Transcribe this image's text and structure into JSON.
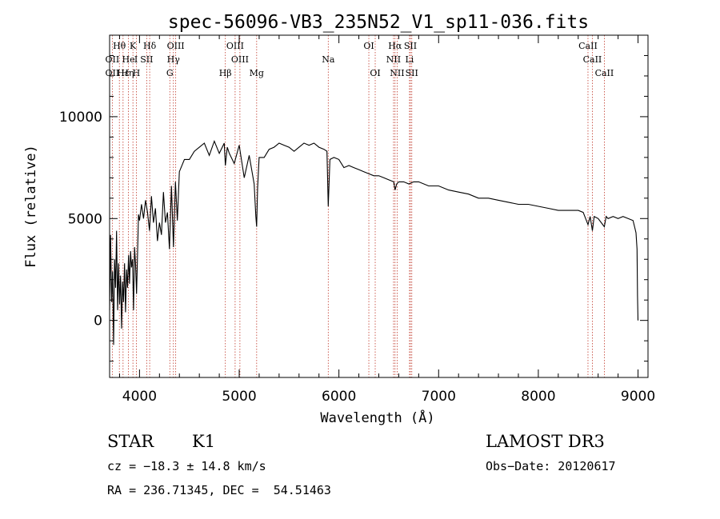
{
  "chart_data": {
    "type": "line",
    "title": "spec-56096-VB3_235N52_V1_sp11-036.fits",
    "xlabel": "Wavelength (Å)",
    "ylabel": "Flux (relative)",
    "xlim": [
      3700,
      9100
    ],
    "ylim": [
      -2800,
      14000
    ],
    "xticks": [
      {
        "value": 4000,
        "label": "4000"
      },
      {
        "value": 5000,
        "label": "5000"
      },
      {
        "value": 6000,
        "label": "6000"
      },
      {
        "value": 7000,
        "label": "7000"
      },
      {
        "value": 8000,
        "label": "8000"
      },
      {
        "value": 9000,
        "label": "9000"
      }
    ],
    "yticks": [
      {
        "value": 0,
        "label": "0"
      },
      {
        "value": 5000,
        "label": "5000"
      },
      {
        "value": 10000,
        "label": "10000"
      }
    ],
    "series": [
      {
        "name": "flux",
        "x": [
          3700,
          3710,
          3720,
          3730,
          3740,
          3750,
          3760,
          3770,
          3780,
          3790,
          3800,
          3810,
          3820,
          3830,
          3840,
          3850,
          3860,
          3870,
          3880,
          3890,
          3900,
          3910,
          3920,
          3930,
          3940,
          3950,
          3960,
          3970,
          3980,
          3990,
          4000,
          4020,
          4040,
          4060,
          4080,
          4100,
          4120,
          4140,
          4160,
          4180,
          4200,
          4220,
          4240,
          4260,
          4280,
          4300,
          4320,
          4340,
          4360,
          4380,
          4400,
          4450,
          4500,
          4550,
          4600,
          4650,
          4700,
          4750,
          4800,
          4850,
          4861,
          4880,
          4900,
          4950,
          5000,
          5050,
          5100,
          5150,
          5167,
          5175,
          5184,
          5200,
          5250,
          5300,
          5350,
          5400,
          5450,
          5500,
          5550,
          5600,
          5650,
          5700,
          5750,
          5800,
          5850,
          5880,
          5893,
          5910,
          5950,
          6000,
          6050,
          6100,
          6150,
          6200,
          6250,
          6300,
          6350,
          6400,
          6450,
          6500,
          6550,
          6563,
          6580,
          6600,
          6650,
          6700,
          6750,
          6800,
          6900,
          7000,
          7100,
          7200,
          7300,
          7400,
          7500,
          7600,
          7700,
          7800,
          7900,
          8000,
          8100,
          8200,
          8300,
          8400,
          8450,
          8498,
          8520,
          8542,
          8560,
          8600,
          8662,
          8680,
          8700,
          8750,
          8800,
          8850,
          8900,
          8950,
          8970,
          8980,
          8990,
          8995,
          9000
        ],
        "values": [
          500,
          4200,
          900,
          2400,
          -1200,
          3000,
          1600,
          4400,
          500,
          2800,
          800,
          2200,
          -400,
          1900,
          900,
          2800,
          400,
          2500,
          1600,
          3200,
          1800,
          3400,
          2600,
          3000,
          500,
          3600,
          2800,
          1300,
          3200,
          5200,
          4900,
          5700,
          5000,
          5900,
          5300,
          4400,
          6100,
          4800,
          5500,
          3900,
          4800,
          4200,
          6300,
          4800,
          5300,
          3500,
          6600,
          3600,
          6800,
          4900,
          7300,
          7900,
          7900,
          8300,
          8500,
          8700,
          8100,
          8800,
          8200,
          8700,
          7600,
          8500,
          8200,
          7700,
          8600,
          7000,
          8100,
          6700,
          5100,
          4600,
          6500,
          8000,
          8000,
          8400,
          8500,
          8700,
          8600,
          8500,
          8300,
          8500,
          8700,
          8600,
          8700,
          8500,
          8400,
          8300,
          5600,
          7900,
          8000,
          7900,
          7500,
          7600,
          7500,
          7400,
          7300,
          7200,
          7100,
          7100,
          7000,
          6900,
          6800,
          6400,
          6700,
          6800,
          6800,
          6700,
          6800,
          6800,
          6600,
          6600,
          6400,
          6300,
          6200,
          6000,
          6000,
          5900,
          5800,
          5700,
          5700,
          5600,
          5500,
          5400,
          5400,
          5400,
          5300,
          4700,
          5100,
          4400,
          5100,
          5000,
          4600,
          5100,
          5000,
          5100,
          5000,
          5100,
          5000,
          4900,
          4500,
          4300,
          3500,
          1200,
          0
        ]
      }
    ],
    "line_labels": [
      {
        "label": "Hθ",
        "x": 3798,
        "row": 1
      },
      {
        "label": "K",
        "x": 3934,
        "row": 1
      },
      {
        "label": "Hδ",
        "x": 4102,
        "row": 1
      },
      {
        "label": "OIII",
        "x": 4363,
        "row": 1
      },
      {
        "label": "OIII",
        "x": 4959,
        "row": 1
      },
      {
        "label": "OI",
        "x": 6300,
        "row": 1
      },
      {
        "label": "Hα",
        "x": 6563,
        "row": 1
      },
      {
        "label": "SII",
        "x": 6717,
        "row": 1
      },
      {
        "label": "CaII",
        "x": 8498,
        "row": 1
      },
      {
        "label": "OII",
        "x": 3727,
        "row": 2
      },
      {
        "label": "He",
        "x": 3889,
        "row": 2
      },
      {
        "label": "I",
        "x": 3965,
        "row": 2
      },
      {
        "label": "SII",
        "x": 4072,
        "row": 2
      },
      {
        "label": "Hγ",
        "x": 4340,
        "row": 2
      },
      {
        "label": "OIII",
        "x": 5007,
        "row": 2
      },
      {
        "label": "Na",
        "x": 5893,
        "row": 2
      },
      {
        "label": "NII",
        "x": 6548,
        "row": 2
      },
      {
        "label": "Li",
        "x": 6708,
        "row": 2
      },
      {
        "label": "CaII",
        "x": 8542,
        "row": 2
      },
      {
        "label": "OII",
        "x": 3727,
        "row": 3
      },
      {
        "label": "Hε",
        "x": 3835,
        "row": 3
      },
      {
        "label": "Hη",
        "x": 3880,
        "row": 3
      },
      {
        "label": "H",
        "x": 3968,
        "row": 3
      },
      {
        "label": "G",
        "x": 4304,
        "row": 3
      },
      {
        "label": "Hβ",
        "x": 4861,
        "row": 3
      },
      {
        "label": "Mg",
        "x": 5175,
        "row": 3
      },
      {
        "label": "OI",
        "x": 6364,
        "row": 3
      },
      {
        "label": "NII",
        "x": 6584,
        "row": 3
      },
      {
        "label": "SII",
        "x": 6731,
        "row": 3
      },
      {
        "label": "CaII",
        "x": 8662,
        "row": 3
      }
    ],
    "marker_lines": [
      3727,
      3798,
      3835,
      3889,
      3934,
      3968,
      4072,
      4102,
      4304,
      4340,
      4363,
      4861,
      4959,
      5007,
      5175,
      5893,
      6300,
      6364,
      6548,
      6563,
      6584,
      6708,
      6717,
      6731,
      8498,
      8542,
      8662
    ],
    "marker_color": "#c0392b"
  },
  "info": {
    "class": "STAR",
    "subclass": "K1",
    "survey": "LAMOST DR3",
    "cz": "cz = −18.3 ± 14.8 km/s",
    "obs_date": "Obs−Date: 20120617",
    "coords": "RA = 236.71345, DEC =  54.51463"
  }
}
